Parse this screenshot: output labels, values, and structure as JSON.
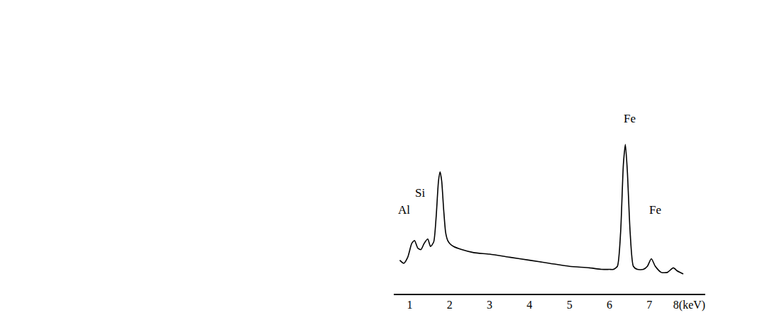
{
  "chart_data": {
    "type": "line",
    "x": [
      0.75,
      0.85,
      0.95,
      1.05,
      1.12,
      1.2,
      1.28,
      1.36,
      1.45,
      1.52,
      1.6,
      1.66,
      1.72,
      1.76,
      1.8,
      1.85,
      1.9,
      1.95,
      2.0,
      2.1,
      2.3,
      2.6,
      3.0,
      3.5,
      4.0,
      4.5,
      5.0,
      5.5,
      5.8,
      6.0,
      6.1,
      6.2,
      6.28,
      6.35,
      6.4,
      6.45,
      6.52,
      6.6,
      6.7,
      6.85,
      6.95,
      7.05,
      7.15,
      7.3,
      7.45,
      7.6,
      7.7,
      7.85
    ],
    "values": [
      22,
      20,
      24,
      33,
      35,
      30,
      29,
      33,
      36,
      31,
      34,
      50,
      74,
      80,
      74,
      55,
      40,
      35,
      33,
      31,
      29,
      27,
      26,
      24,
      22,
      20,
      18,
      17,
      16,
      16,
      16,
      18,
      40,
      85,
      98,
      80,
      40,
      18,
      16,
      16,
      18,
      23,
      18,
      14,
      14,
      17,
      15,
      13
    ],
    "color": "#000000",
    "xlim": [
      0.6,
      8.4
    ],
    "xticks": [
      1,
      2,
      3,
      4,
      5,
      6,
      7,
      {
        "value": 8,
        "label": "8(keV)"
      }
    ],
    "ylim": [
      0,
      125
    ],
    "tick_labels": "x",
    "grid": false,
    "annotations": [
      {
        "text": "Al",
        "x": 0.85,
        "y": 55
      },
      {
        "text": "Si",
        "x": 1.25,
        "y": 66
      },
      {
        "text": "Fe",
        "x": 6.5,
        "y": 115
      },
      {
        "text": "Fe",
        "x": 7.15,
        "y": 55
      }
    ]
  }
}
